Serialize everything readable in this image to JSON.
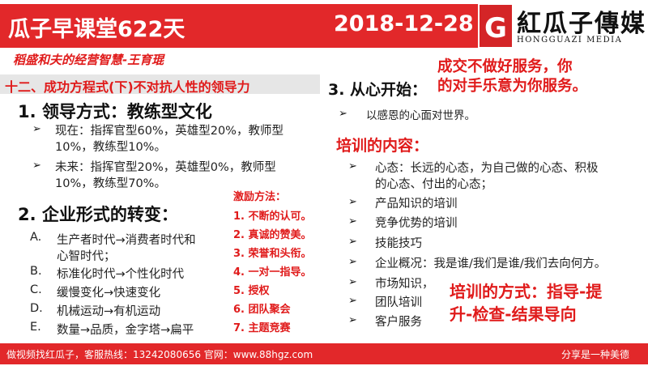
{
  "header": {
    "title": "瓜子早课堂622天",
    "date": "2018-12-28"
  },
  "logo": {
    "mark": "G",
    "name": "紅瓜子傳媒",
    "english": "HONGGUAZI MEDIA"
  },
  "subtitle": "稻盛和夫的经营智慧-王育琨",
  "section": "十二、成功方程式(下)不对抗人性的领导力",
  "left": {
    "h1": "1. 领导方式：教练型文化",
    "bullets": [
      {
        "line1": "现在：指挥官型60%，英雄型20%，教师型",
        "line2": "10%，教练型10%。"
      },
      {
        "line1": "未来：指挥官型20%，英雄型0%，教师型",
        "line2": "10%，教练型70%。"
      }
    ],
    "h2": "2. 企业形式的转变：",
    "items": [
      {
        "letter": "A.",
        "line1": "生产者时代→消费者时代和",
        "line2": "心智时代；"
      },
      {
        "letter": "B.",
        "line1": "标准化时代→个性化时代"
      },
      {
        "letter": "C.",
        "line1": "缓慢变化→快速变化"
      },
      {
        "letter": "D.",
        "line1": "机械运动→有机运动"
      },
      {
        "letter": "E.",
        "line1": "数量→品质，金字塔→扁平"
      }
    ]
  },
  "incentive": {
    "title": "激励方法：",
    "items": [
      "1. 不断的认可。",
      "2. 真诚的赞美。",
      "3. 荣誉和头衔。",
      "4. 一对一指导。",
      "5. 授权",
      "6. 团队聚会",
      "7. 主题竞赛"
    ]
  },
  "right": {
    "h3": "3. 从心开始：",
    "callout": {
      "line1": "成交不做好服务，你",
      "line2": "的对手乐意为你服务。"
    },
    "bullet0": "以感恩的心面对世界。",
    "training_title": "培训的内容：",
    "training": [
      {
        "line1": "心态：长远的心态，为自己做的心态、积极",
        "line2": "的心态、付出的心态；"
      },
      {
        "line1": "产品知识的培训"
      },
      {
        "line1": "竞争优势的培训"
      },
      {
        "line1": "技能技巧"
      },
      {
        "line1": "企业概况：我是谁/我们是谁/我们去向何方。"
      },
      {
        "line1": "市场知识，"
      },
      {
        "line1": "团队培训"
      },
      {
        "line1": "客户服务"
      }
    ],
    "method": {
      "line1": "培训的方式：指导-提",
      "line2": "升-检查-结果导向"
    }
  },
  "footer": {
    "left": "做视频找红瓜子，客服热线：13242080656  官网：www.88hgz.com",
    "right": "分享是一种美德"
  },
  "colors": {
    "accent": "#e2282a",
    "text": "#222222"
  }
}
